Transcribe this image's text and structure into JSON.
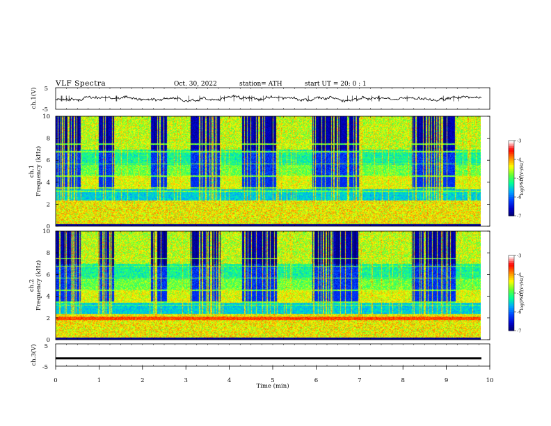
{
  "header": {
    "title": "VLF Spectra",
    "date": "Oct. 30, 2022",
    "station": "station= ATH",
    "start": "start UT = 20: 0 : 1"
  },
  "colors": {
    "colormap": [
      "#000066",
      "#0000cc",
      "#0044ff",
      "#00aaff",
      "#00ff99",
      "#66ff33",
      "#ffff00",
      "#ff8800",
      "#ff0000",
      "#ffffff"
    ]
  },
  "chart_data": [
    {
      "id": "ch1-waveform",
      "type": "line",
      "ylabel": "ch.1(V)",
      "yticks": [
        "5",
        "-5"
      ],
      "ylim": [
        -5,
        5
      ],
      "xlim": [
        0,
        10
      ],
      "description_values": {
        "baseline": 0,
        "noise_amplitude": 0.8
      }
    },
    {
      "id": "ch1-spectrogram",
      "type": "heatmap",
      "ylabel_top": "ch.1",
      "ylabel": "Frequency (kHz)",
      "yticks": [
        "10",
        "8",
        "6",
        "4",
        "2",
        "0"
      ],
      "ylim": [
        0,
        10
      ],
      "xlim": [
        0,
        10
      ],
      "colorbar": {
        "label": "log(PSD)(V²/Hz)",
        "ticks": [
          "-3",
          "-4",
          "-5",
          "-6",
          "-7"
        ],
        "range": [
          -7,
          -3
        ]
      },
      "quiet_segments_min": [
        [
          0.0,
          0.58
        ],
        [
          0.98,
          1.34
        ],
        [
          2.18,
          2.56
        ],
        [
          3.1,
          3.8
        ],
        [
          4.28,
          5.1
        ],
        [
          5.9,
          7.0
        ],
        [
          8.2,
          9.2
        ]
      ]
    },
    {
      "id": "ch2-spectrogram",
      "type": "heatmap",
      "ylabel_top": "ch.2",
      "ylabel": "Frequency (kHz)",
      "yticks": [
        "10",
        "8",
        "6",
        "4",
        "2",
        "0"
      ],
      "ylim": [
        0,
        10
      ],
      "xlim": [
        0,
        10
      ],
      "colorbar": {
        "label": "log(PSD)(V²/Hz)",
        "ticks": [
          "-3",
          "-4",
          "-5",
          "-6",
          "-7"
        ],
        "range": [
          -7,
          -3
        ]
      },
      "quiet_segments_min": [
        [
          0.0,
          0.58
        ],
        [
          0.98,
          1.34
        ],
        [
          2.18,
          2.56
        ],
        [
          3.1,
          3.8
        ],
        [
          4.28,
          5.1
        ],
        [
          5.9,
          7.0
        ],
        [
          8.2,
          9.2
        ]
      ]
    },
    {
      "id": "ch3-waveform",
      "type": "line",
      "ylabel": "ch.3(V)",
      "yticks": [
        "5",
        "-5"
      ],
      "ylim": [
        -5,
        5
      ],
      "xlim": [
        0,
        10
      ],
      "description_values": {
        "baseline": -1.5
      }
    }
  ],
  "xaxis": {
    "label": "Time (min)",
    "ticks": [
      "0",
      "1",
      "2",
      "3",
      "4",
      "5",
      "6",
      "7",
      "8",
      "9",
      "10"
    ]
  }
}
